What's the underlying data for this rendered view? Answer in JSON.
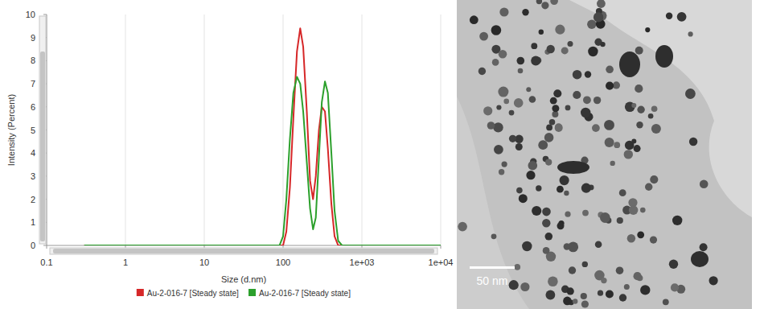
{
  "chart_data": {
    "type": "line",
    "x_label": "Size (d.nm)",
    "y_label": "Intensity (Percent)",
    "log": "x",
    "grid": true,
    "legend": "bottom",
    "xlim": [
      0.1,
      10000
    ],
    "ylim": [
      0,
      10
    ],
    "xticks": [
      0.1,
      1,
      10,
      100,
      {
        "value": 1000,
        "label": "1e+03"
      },
      {
        "value": 10000,
        "label": "1e+04"
      }
    ],
    "yticks": [
      0,
      1,
      2,
      3,
      4,
      5,
      6,
      7,
      8,
      9,
      10
    ],
    "x": [
      0.3,
      1,
      10,
      90,
      100,
      110,
      122,
      135,
      150,
      165,
      180,
      200,
      220,
      240,
      260,
      285,
      310,
      340,
      370,
      410,
      450,
      500,
      560,
      1000,
      10000
    ],
    "series": [
      {
        "name": "Au-2-016-7 [Steady state]",
        "color": "#d62728",
        "values": [
          0,
          0,
          0,
          0,
          0,
          0.6,
          2.5,
          5.5,
          8.4,
          9.4,
          8.6,
          5.8,
          2.8,
          2.0,
          3.0,
          5.0,
          6.0,
          5.8,
          4.2,
          1.8,
          0.4,
          0,
          0,
          0,
          0
        ]
      },
      {
        "name": "Au-2-016-7 [Steady state]",
        "color": "#2ca02c",
        "values": [
          0,
          0,
          0,
          0,
          0.4,
          2.0,
          4.6,
          6.6,
          7.3,
          7.0,
          5.8,
          3.6,
          1.6,
          0.7,
          1.2,
          3.8,
          6.2,
          7.1,
          6.6,
          4.0,
          1.5,
          0.2,
          0,
          0,
          0
        ]
      }
    ]
  },
  "image": {
    "scale_bar_label": "50 nm"
  }
}
